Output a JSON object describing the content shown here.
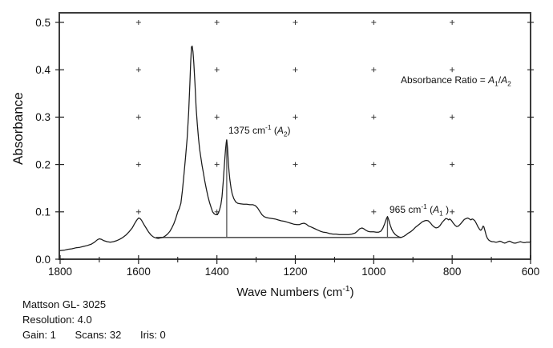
{
  "axis": {
    "y_title": "Absorbance",
    "x_title_plain": "Wave Numbers (cm⁻¹)",
    "x_title_segments": [
      {
        "t": "Wave Numbers (cm"
      },
      {
        "t": "-1",
        "s": "sup"
      },
      {
        "t": ")"
      }
    ]
  },
  "annotations": {
    "peak_a2": {
      "plain": "1375 cm⁻¹ (A₂)",
      "segments": [
        {
          "t": "1375 cm"
        },
        {
          "t": "-1",
          "s": "sup"
        },
        {
          "t": " ("
        },
        {
          "t": "A",
          "s": "i"
        },
        {
          "t": "2",
          "s": "sub"
        },
        {
          "t": ")"
        }
      ]
    },
    "peak_a1": {
      "plain": "965 cm⁻¹ (A₁)",
      "segments": [
        {
          "t": "965 cm"
        },
        {
          "t": "-1",
          "s": "sup"
        },
        {
          "t": " ("
        },
        {
          "t": "A",
          "s": "i"
        },
        {
          "t": "1",
          "s": "sub"
        },
        {
          "t": " )"
        }
      ]
    },
    "ratio": {
      "plain": "Absorbance Ratio = A₁/A₂",
      "segments": [
        {
          "t": "Absorbance Ratio = "
        },
        {
          "t": "A",
          "s": "i"
        },
        {
          "t": "1",
          "s": "sub"
        },
        {
          "t": "/"
        },
        {
          "t": "A",
          "s": "i"
        },
        {
          "t": "2",
          "s": "sub"
        }
      ]
    }
  },
  "footer": {
    "line1": "Mattson GL- 3025",
    "line2": "Resolution: 4.0",
    "gain": "Gain: 1",
    "scans": "Scans: 32",
    "iris": "Iris: 0"
  },
  "chart_data": {
    "type": "line",
    "title": "",
    "xlabel": "Wave Numbers (cm⁻¹)",
    "ylabel": "Absorbance",
    "xlim": [
      1800,
      600
    ],
    "ylim": [
      0.0,
      0.5
    ],
    "x_axis_reversed": true,
    "x_ticks": [
      1800,
      1600,
      1400,
      1200,
      1000,
      800,
      600
    ],
    "x_minor_ticks": [
      1700,
      1500,
      1300,
      1100,
      900,
      700
    ],
    "y_ticks": [
      0.0,
      0.1,
      0.2,
      0.3,
      0.4,
      0.5
    ],
    "y_tick_labels": [
      "0.0",
      "0.1",
      "0.2",
      "0.3",
      "0.4",
      "0.5"
    ],
    "grid_markers": {
      "style": "plus",
      "x": [
        1600,
        1400,
        1200,
        1000,
        800
      ],
      "y": [
        0.1,
        0.2,
        0.3,
        0.4,
        0.5
      ]
    },
    "line_color": "#1a1a1a",
    "baseline": {
      "from": [
        1555,
        0.046
      ],
      "to": [
        930,
        0.046
      ],
      "color": "#555555"
    },
    "peak_markers": [
      {
        "wavenumber": 1375,
        "absorbance": 0.252,
        "label": "1375 cm⁻¹ (A₂)"
      },
      {
        "wavenumber": 965,
        "absorbance": 0.09,
        "label": "965 cm⁻¹ (A₁)"
      }
    ],
    "note": "Absorbance Ratio = A₁/A₂",
    "series": [
      {
        "name": "absorbance-spectrum",
        "points": [
          [
            1800,
            0.018
          ],
          [
            1790,
            0.019
          ],
          [
            1780,
            0.021
          ],
          [
            1770,
            0.022
          ],
          [
            1760,
            0.024
          ],
          [
            1750,
            0.025
          ],
          [
            1740,
            0.027
          ],
          [
            1730,
            0.029
          ],
          [
            1720,
            0.032
          ],
          [
            1712,
            0.036
          ],
          [
            1705,
            0.041
          ],
          [
            1700,
            0.043
          ],
          [
            1695,
            0.042
          ],
          [
            1688,
            0.039
          ],
          [
            1680,
            0.037
          ],
          [
            1672,
            0.036
          ],
          [
            1664,
            0.037
          ],
          [
            1656,
            0.039
          ],
          [
            1648,
            0.042
          ],
          [
            1640,
            0.046
          ],
          [
            1632,
            0.051
          ],
          [
            1624,
            0.058
          ],
          [
            1616,
            0.066
          ],
          [
            1610,
            0.075
          ],
          [
            1605,
            0.082
          ],
          [
            1600,
            0.087
          ],
          [
            1596,
            0.086
          ],
          [
            1592,
            0.082
          ],
          [
            1586,
            0.073
          ],
          [
            1580,
            0.065
          ],
          [
            1574,
            0.057
          ],
          [
            1568,
            0.051
          ],
          [
            1562,
            0.047
          ],
          [
            1556,
            0.045
          ],
          [
            1550,
            0.044
          ],
          [
            1544,
            0.045
          ],
          [
            1538,
            0.046
          ],
          [
            1532,
            0.049
          ],
          [
            1526,
            0.053
          ],
          [
            1520,
            0.059
          ],
          [
            1515,
            0.066
          ],
          [
            1510,
            0.075
          ],
          [
            1505,
            0.086
          ],
          [
            1500,
            0.1
          ],
          [
            1496,
            0.107
          ],
          [
            1492,
            0.118
          ],
          [
            1488,
            0.145
          ],
          [
            1484,
            0.18
          ],
          [
            1480,
            0.215
          ],
          [
            1476,
            0.255
          ],
          [
            1472,
            0.31
          ],
          [
            1469,
            0.37
          ],
          [
            1467,
            0.415
          ],
          [
            1465,
            0.448
          ],
          [
            1463,
            0.45
          ],
          [
            1461,
            0.438
          ],
          [
            1459,
            0.415
          ],
          [
            1456,
            0.37
          ],
          [
            1453,
            0.32
          ],
          [
            1450,
            0.285
          ],
          [
            1447,
            0.255
          ],
          [
            1444,
            0.232
          ],
          [
            1441,
            0.215
          ],
          [
            1438,
            0.198
          ],
          [
            1435,
            0.185
          ],
          [
            1431,
            0.165
          ],
          [
            1427,
            0.148
          ],
          [
            1423,
            0.133
          ],
          [
            1419,
            0.12
          ],
          [
            1415,
            0.11
          ],
          [
            1411,
            0.1
          ],
          [
            1407,
            0.096
          ],
          [
            1403,
            0.094
          ],
          [
            1399,
            0.094
          ],
          [
            1396,
            0.098
          ],
          [
            1393,
            0.105
          ],
          [
            1390,
            0.115
          ],
          [
            1387,
            0.132
          ],
          [
            1384,
            0.163
          ],
          [
            1381,
            0.2
          ],
          [
            1378,
            0.232
          ],
          [
            1376,
            0.248
          ],
          [
            1375,
            0.252
          ],
          [
            1373,
            0.235
          ],
          [
            1371,
            0.205
          ],
          [
            1369,
            0.185
          ],
          [
            1367,
            0.168
          ],
          [
            1364,
            0.15
          ],
          [
            1361,
            0.138
          ],
          [
            1357,
            0.128
          ],
          [
            1352,
            0.121
          ],
          [
            1347,
            0.118
          ],
          [
            1340,
            0.117
          ],
          [
            1332,
            0.116
          ],
          [
            1324,
            0.116
          ],
          [
            1316,
            0.115
          ],
          [
            1308,
            0.115
          ],
          [
            1302,
            0.113
          ],
          [
            1296,
            0.108
          ],
          [
            1290,
            0.1
          ],
          [
            1285,
            0.094
          ],
          [
            1280,
            0.09
          ],
          [
            1274,
            0.088
          ],
          [
            1268,
            0.087
          ],
          [
            1260,
            0.086
          ],
          [
            1252,
            0.085
          ],
          [
            1244,
            0.083
          ],
          [
            1236,
            0.081
          ],
          [
            1228,
            0.08
          ],
          [
            1220,
            0.078
          ],
          [
            1212,
            0.076
          ],
          [
            1204,
            0.074
          ],
          [
            1196,
            0.073
          ],
          [
            1190,
            0.073
          ],
          [
            1184,
            0.075
          ],
          [
            1178,
            0.076
          ],
          [
            1172,
            0.074
          ],
          [
            1166,
            0.07
          ],
          [
            1160,
            0.068
          ],
          [
            1152,
            0.065
          ],
          [
            1144,
            0.062
          ],
          [
            1136,
            0.059
          ],
          [
            1128,
            0.057
          ],
          [
            1120,
            0.056
          ],
          [
            1112,
            0.054
          ],
          [
            1104,
            0.053
          ],
          [
            1096,
            0.053
          ],
          [
            1088,
            0.052
          ],
          [
            1080,
            0.052
          ],
          [
            1072,
            0.052
          ],
          [
            1064,
            0.052
          ],
          [
            1056,
            0.053
          ],
          [
            1048,
            0.055
          ],
          [
            1042,
            0.059
          ],
          [
            1036,
            0.064
          ],
          [
            1030,
            0.066
          ],
          [
            1025,
            0.064
          ],
          [
            1020,
            0.061
          ],
          [
            1015,
            0.059
          ],
          [
            1010,
            0.058
          ],
          [
            1005,
            0.058
          ],
          [
            1000,
            0.058
          ],
          [
            994,
            0.057
          ],
          [
            988,
            0.057
          ],
          [
            982,
            0.059
          ],
          [
            977,
            0.065
          ],
          [
            972,
            0.075
          ],
          [
            968,
            0.085
          ],
          [
            965,
            0.09
          ],
          [
            962,
            0.084
          ],
          [
            958,
            0.072
          ],
          [
            954,
            0.063
          ],
          [
            950,
            0.057
          ],
          [
            945,
            0.052
          ],
          [
            940,
            0.049
          ],
          [
            935,
            0.047
          ],
          [
            930,
            0.046
          ],
          [
            924,
            0.048
          ],
          [
            918,
            0.051
          ],
          [
            912,
            0.055
          ],
          [
            906,
            0.058
          ],
          [
            900,
            0.062
          ],
          [
            894,
            0.067
          ],
          [
            888,
            0.071
          ],
          [
            882,
            0.075
          ],
          [
            876,
            0.079
          ],
          [
            870,
            0.081
          ],
          [
            866,
            0.082
          ],
          [
            861,
            0.081
          ],
          [
            856,
            0.077
          ],
          [
            851,
            0.072
          ],
          [
            846,
            0.068
          ],
          [
            841,
            0.066
          ],
          [
            836,
            0.067
          ],
          [
            831,
            0.071
          ],
          [
            826,
            0.077
          ],
          [
            821,
            0.082
          ],
          [
            816,
            0.086
          ],
          [
            812,
            0.085
          ],
          [
            809,
            0.083
          ],
          [
            806,
            0.085
          ],
          [
            802,
            0.082
          ],
          [
            797,
            0.076
          ],
          [
            792,
            0.071
          ],
          [
            788,
            0.069
          ],
          [
            784,
            0.07
          ],
          [
            779,
            0.074
          ],
          [
            774,
            0.079
          ],
          [
            769,
            0.084
          ],
          [
            764,
            0.086
          ],
          [
            760,
            0.087
          ],
          [
            756,
            0.085
          ],
          [
            752,
            0.083
          ],
          [
            749,
            0.085
          ],
          [
            746,
            0.084
          ],
          [
            742,
            0.081
          ],
          [
            738,
            0.075
          ],
          [
            734,
            0.068
          ],
          [
            730,
            0.063
          ],
          [
            727,
            0.061
          ],
          [
            724,
            0.064
          ],
          [
            721,
            0.07
          ],
          [
            719,
            0.068
          ],
          [
            716,
            0.059
          ],
          [
            713,
            0.05
          ],
          [
            710,
            0.044
          ],
          [
            706,
            0.04
          ],
          [
            702,
            0.038
          ],
          [
            698,
            0.037
          ],
          [
            694,
            0.037
          ],
          [
            690,
            0.036
          ],
          [
            686,
            0.036
          ],
          [
            682,
            0.037
          ],
          [
            678,
            0.038
          ],
          [
            674,
            0.037
          ],
          [
            670,
            0.035
          ],
          [
            666,
            0.034
          ],
          [
            662,
            0.035
          ],
          [
            658,
            0.037
          ],
          [
            654,
            0.038
          ],
          [
            650,
            0.037
          ],
          [
            646,
            0.035
          ],
          [
            642,
            0.034
          ],
          [
            638,
            0.034
          ],
          [
            634,
            0.035
          ],
          [
            630,
            0.036
          ],
          [
            626,
            0.037
          ],
          [
            622,
            0.036
          ],
          [
            618,
            0.035
          ],
          [
            614,
            0.035
          ],
          [
            610,
            0.036
          ],
          [
            606,
            0.036
          ],
          [
            602,
            0.036
          ],
          [
            600,
            0.037
          ]
        ]
      }
    ]
  }
}
